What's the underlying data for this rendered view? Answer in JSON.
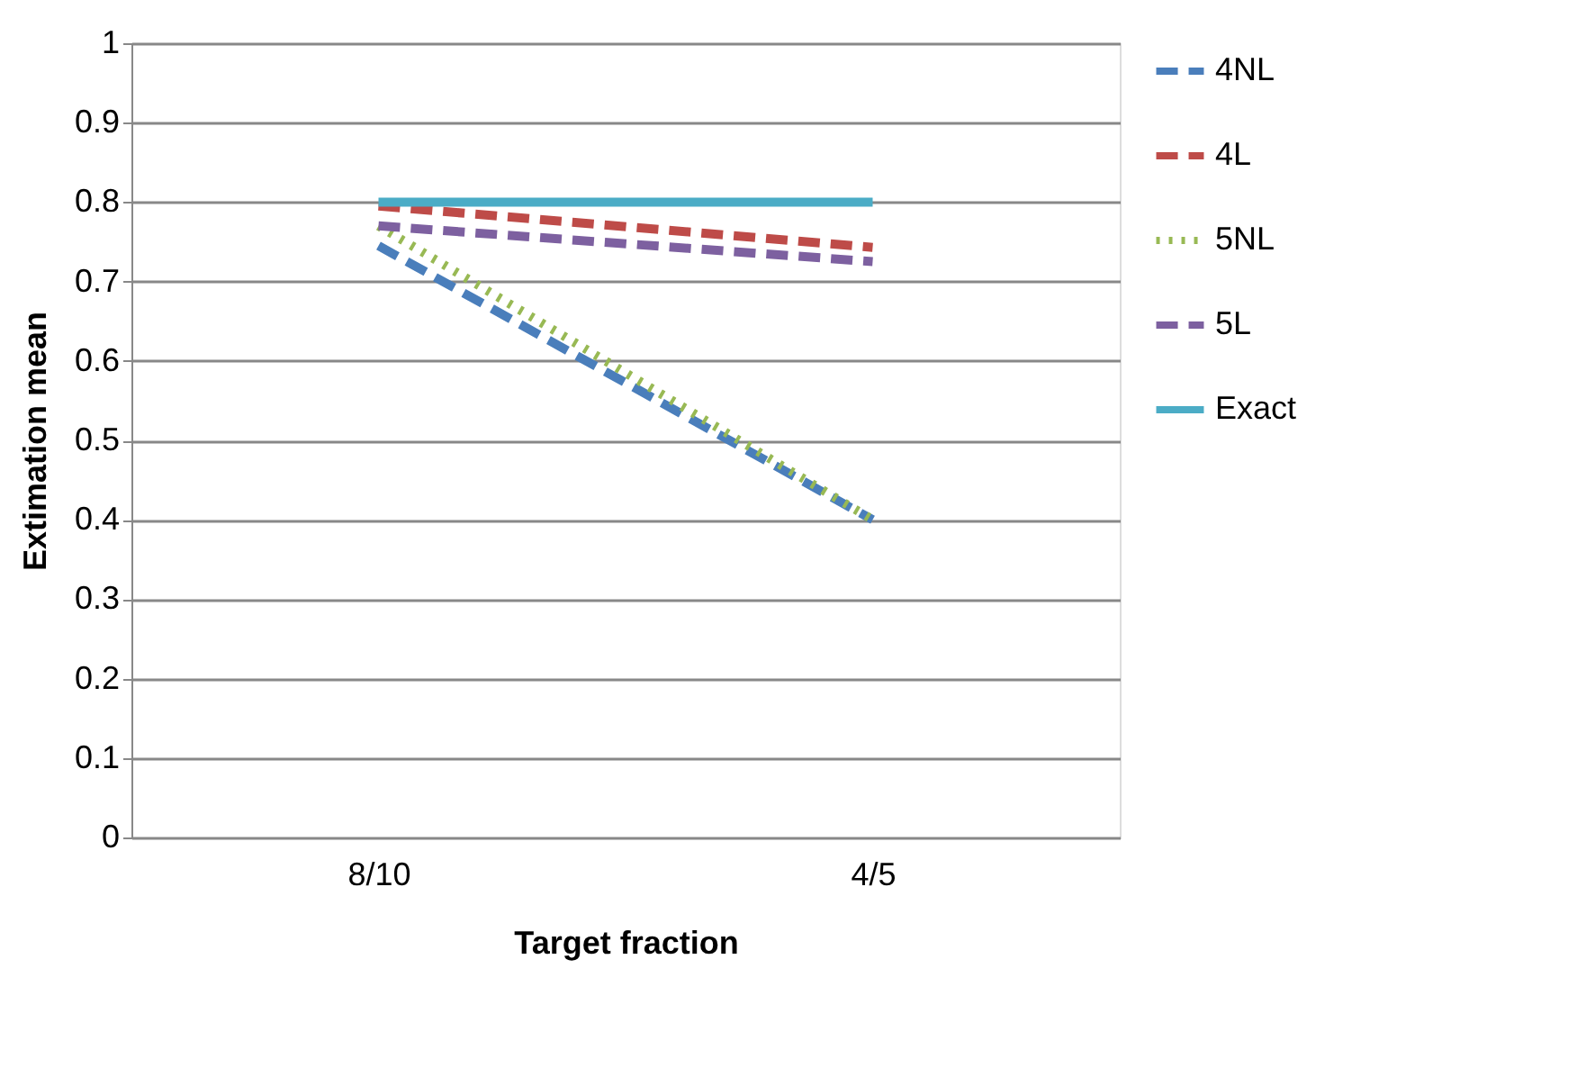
{
  "chart_data": {
    "type": "line",
    "xlabel": "Target fraction",
    "ylabel": "Extimation mean",
    "categories": [
      "8/10",
      "4/5"
    ],
    "series": [
      {
        "name": "4NL",
        "color": "#4a7ebb",
        "values": [
          0.745,
          0.4
        ],
        "line_style": "dashed"
      },
      {
        "name": "4L",
        "color": "#be4b48",
        "values": [
          0.795,
          0.743
        ],
        "line_style": "dashed"
      },
      {
        "name": "5NL",
        "color": "#98b954",
        "values": [
          0.77,
          0.4
        ],
        "line_style": "dotted"
      },
      {
        "name": "5L",
        "color": "#7d60a0",
        "values": [
          0.77,
          0.725
        ],
        "line_style": "dashed"
      },
      {
        "name": "Exact",
        "color": "#4bacc6",
        "values": [
          0.8,
          0.8
        ],
        "line_style": "solid"
      }
    ],
    "ylim": [
      0,
      1
    ],
    "yticks": [
      0,
      0.1,
      0.2,
      0.3,
      0.4,
      0.5,
      0.6,
      0.7,
      0.8,
      0.9,
      1
    ],
    "grid": "y",
    "legend": "right"
  }
}
